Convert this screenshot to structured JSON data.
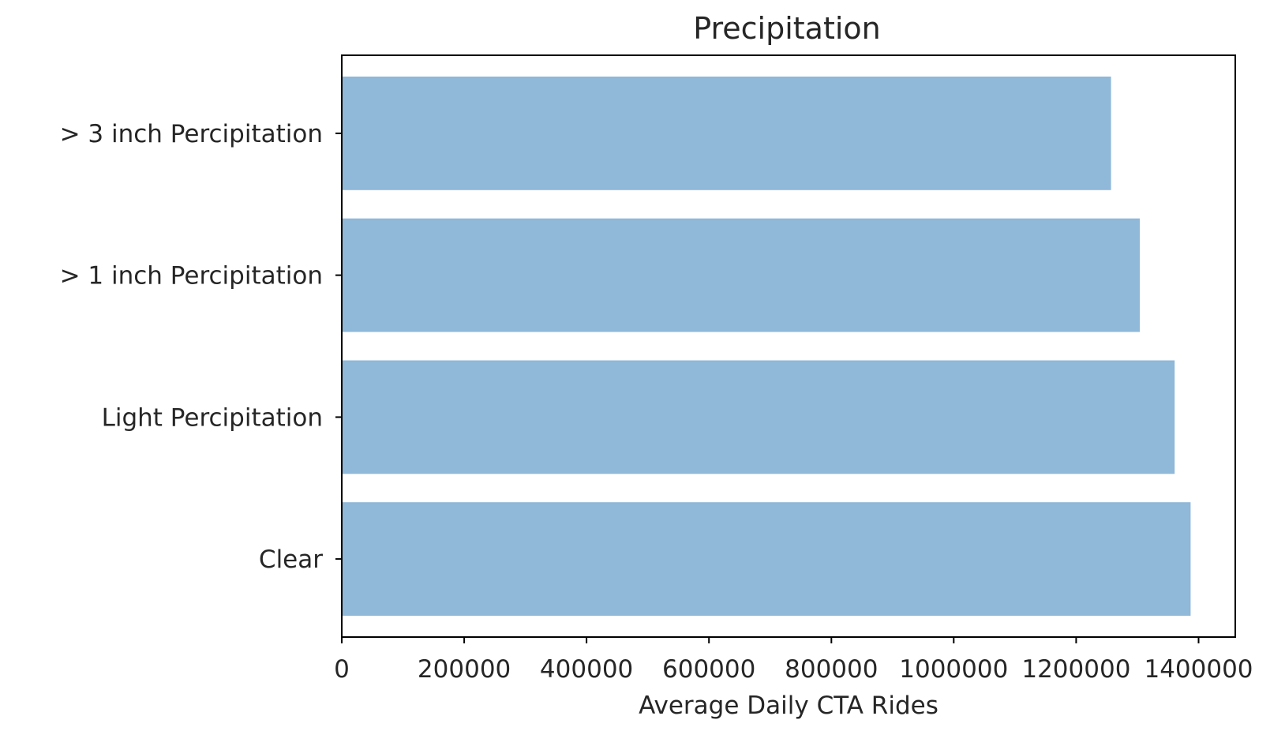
{
  "chart_data": {
    "type": "bar",
    "orientation": "horizontal",
    "title": "Precipitation",
    "xlabel": "Average Daily CTA Rides",
    "ylabel": "",
    "categories": [
      "Clear",
      "Light Percipitation",
      "> 1 inch Percipitation",
      "> 3 inch Percipitation"
    ],
    "values": [
      1387000,
      1361000,
      1304000,
      1257000
    ],
    "xlim": [
      0,
      1460000
    ],
    "xticks": [
      0,
      200000,
      400000,
      600000,
      800000,
      1000000,
      1200000,
      1400000
    ],
    "xtick_labels": [
      "0",
      "200000",
      "400000",
      "600000",
      "800000",
      "1000000",
      "1200000",
      "1400000"
    ],
    "grid": false,
    "legend": "none",
    "bar_color": "#8fb8d9"
  }
}
